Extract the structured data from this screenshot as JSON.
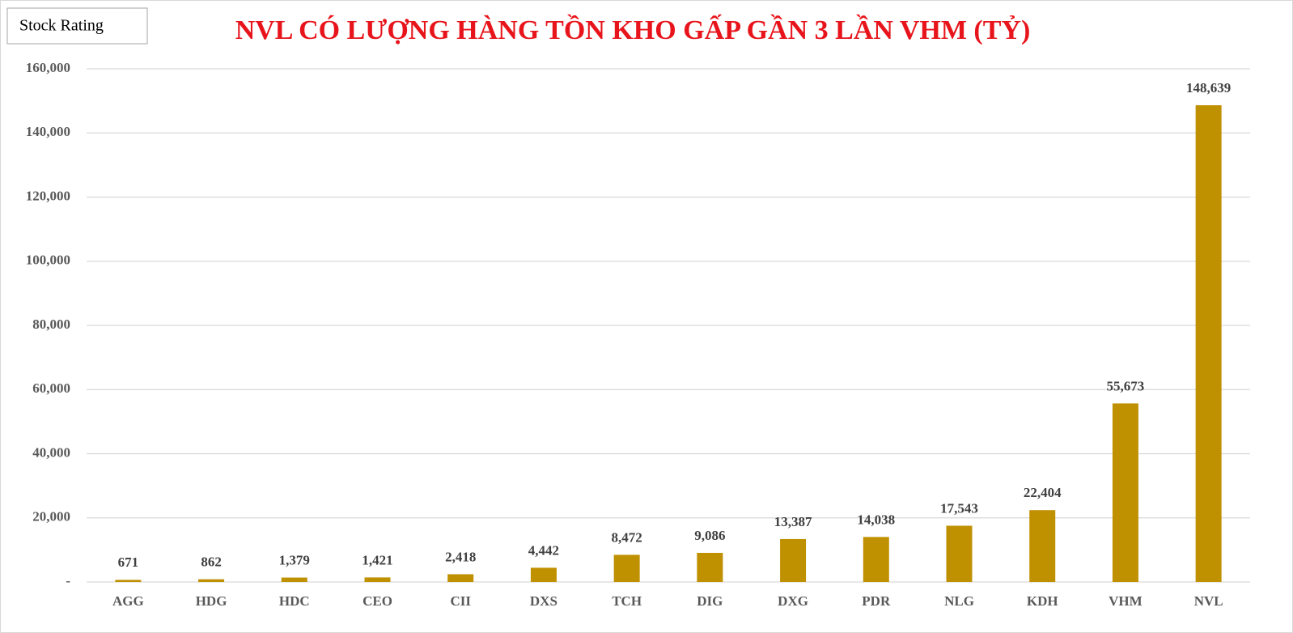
{
  "chart_data": {
    "type": "bar",
    "title": "NVL CÓ LƯỢNG HÀNG TỒN KHO GẤP GẦN 3 LẦN VHM (TỶ)",
    "annotation": "Stock Rating",
    "categories": [
      "AGG",
      "HDG",
      "HDC",
      "CEO",
      "CII",
      "DXS",
      "TCH",
      "DIG",
      "DXG",
      "PDR",
      "NLG",
      "KDH",
      "VHM",
      "NVL"
    ],
    "values": [
      671,
      862,
      1379,
      1421,
      2418,
      4442,
      8472,
      9086,
      13387,
      14038,
      17543,
      22404,
      55673,
      148639
    ],
    "value_labels": [
      "671",
      "862",
      "1,379",
      "1,421",
      "2,418",
      "4,442",
      "8,472",
      "9,086",
      "13,387",
      "14,038",
      "17,543",
      "22,404",
      "55,673",
      "148,639"
    ],
    "color": "#bf9000",
    "ylim": [
      0,
      160000
    ],
    "yticks": [
      {
        "value": 0,
        "label": "-"
      },
      {
        "value": 20000,
        "label": "20,000"
      },
      {
        "value": 40000,
        "label": "40,000"
      },
      {
        "value": 60000,
        "label": "60,000"
      },
      {
        "value": 80000,
        "label": "80,000"
      },
      {
        "value": 100000,
        "label": "100,000"
      },
      {
        "value": 120000,
        "label": "120,000"
      },
      {
        "value": 140000,
        "label": "140,000"
      },
      {
        "value": 160000,
        "label": "160,000"
      }
    ],
    "grid": true
  }
}
